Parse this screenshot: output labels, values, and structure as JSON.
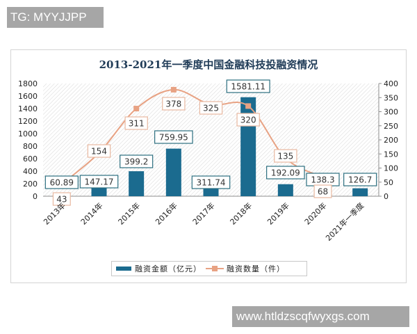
{
  "watermarks": {
    "top": "TG: MYYJJPP",
    "bottom": "www.htldzscqfwyxgs.com"
  },
  "colors": {
    "bar": "#1b6b8f",
    "line": "#e8a283",
    "title": "#1f3b57",
    "label_border_bar": "#2b6e7f",
    "label_border_line": "#e8b8a0"
  },
  "legend": {
    "bar_label": "融资金额（亿元）",
    "line_label": "融资数量（件）"
  },
  "chart_data": {
    "type": "bar+line",
    "title": "2013-2021年一季度中国金融科技投融资情况",
    "categories": [
      "2013年",
      "2014年",
      "2015年",
      "2016年",
      "2017年",
      "2018年",
      "2019年",
      "2020年",
      "2021年一季度"
    ],
    "series": [
      {
        "name": "融资金额（亿元）",
        "type": "bar",
        "axis": "left",
        "values": [
          60.89,
          147.17,
          399.2,
          759.95,
          311.74,
          1581.11,
          192.09,
          138.3,
          126.7
        ],
        "labels": [
          "60.89",
          "147.17",
          "399.2",
          "759.95",
          "311.74",
          "1581.11",
          "192.09",
          "138.3",
          "126.7"
        ]
      },
      {
        "name": "融资数量（件）",
        "type": "line",
        "axis": "right",
        "values": [
          43,
          154,
          311,
          378,
          325,
          320,
          135,
          68,
          null
        ],
        "labels": [
          "43",
          "154",
          "311",
          "378",
          "325",
          "320",
          "135",
          "68"
        ]
      }
    ],
    "y_left": {
      "ylim": [
        0,
        1800
      ],
      "ticks": [
        "1800",
        "1600",
        "1400",
        "1200",
        "1000",
        "800",
        "600",
        "400",
        "200",
        "0"
      ]
    },
    "y_right": {
      "ylim": [
        0,
        400
      ],
      "ticks": [
        "400",
        "350",
        "300",
        "250",
        "200",
        "150",
        "100",
        "50",
        "0"
      ]
    },
    "xlabel": "",
    "ylabel": "",
    "grid": false,
    "legend_position": "bottom"
  }
}
